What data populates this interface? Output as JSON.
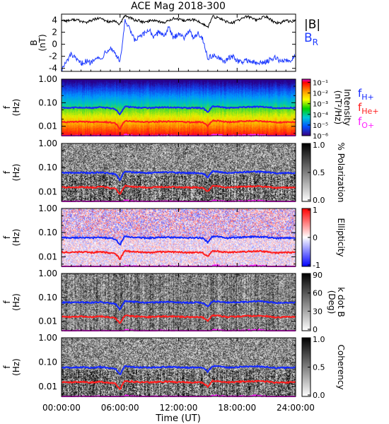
{
  "title": "ACE Mag 2018-300",
  "xlabel": "Time (UT)",
  "x_ticks": [
    "00:00:00",
    "06:00:00",
    "12:00:00",
    "18:00:00",
    "24:00:00"
  ],
  "x_range_hours": [
    0,
    24
  ],
  "colors": {
    "B_total": "#000000",
    "B_R": "#1f3cff",
    "f_H": "#1428ff",
    "f_He": "#ff1e1e",
    "f_O": "#ff20ff"
  },
  "legend_b": {
    "total": "|B|",
    "radial": "B",
    "radial_sub": "R"
  },
  "legend_f": [
    {
      "base": "f",
      "sub": "H+",
      "color": "#1428ff"
    },
    {
      "base": "f",
      "sub": "He+",
      "color": "#ff1e1e"
    },
    {
      "base": "f",
      "sub": "O+",
      "color": "#ff20ff"
    }
  ],
  "chart_data": [
    {
      "type": "line",
      "ylabel": "B (nT)",
      "ylabel_lines": [
        "B",
        "(nT)"
      ],
      "y_ticks": [
        "4",
        "2",
        "0",
        "-2",
        "-4"
      ],
      "ylim": [
        -4.5,
        5
      ],
      "x_hours": [
        0,
        0.5,
        1,
        1.5,
        2,
        2.5,
        3,
        3.5,
        4,
        4.5,
        5,
        5.5,
        6,
        6.5,
        7,
        7.5,
        8,
        8.5,
        9,
        9.5,
        10,
        10.5,
        11,
        11.5,
        12,
        12.5,
        13,
        13.5,
        14,
        14.5,
        15,
        15.5,
        16,
        16.5,
        17,
        17.5,
        18,
        18.5,
        19,
        19.5,
        20,
        20.5,
        21,
        21.5,
        22,
        22.5,
        23,
        23.5,
        24
      ],
      "series": [
        {
          "name": "|B|",
          "values": [
            4.0,
            3.9,
            4.0,
            4.1,
            3.8,
            3.6,
            3.9,
            4.2,
            4.3,
            3.9,
            3.7,
            3.8,
            3.3,
            4.8,
            4.4,
            4.0,
            3.9,
            3.6,
            3.9,
            4.0,
            3.8,
            3.5,
            4.0,
            4.3,
            4.1,
            3.9,
            4.0,
            4.1,
            3.8,
            3.4,
            2.8,
            4.6,
            4.4,
            4.1,
            3.7,
            3.5,
            3.9,
            4.3,
            4.6,
            4.4,
            4.0,
            4.4,
            4.6,
            4.0,
            3.5,
            3.6,
            3.9,
            3.8,
            4.0
          ]
        },
        {
          "name": "B_R",
          "values": [
            -4.2,
            -3.0,
            -1.6,
            -2.6,
            -3.2,
            -2.8,
            -3.1,
            -2.0,
            -2.6,
            -1.2,
            -0.6,
            -1.4,
            -3.0,
            3.8,
            2.4,
            0.6,
            1.2,
            1.7,
            2.5,
            1.0,
            2.2,
            1.4,
            2.7,
            0.9,
            2.0,
            1.0,
            2.3,
            1.2,
            1.9,
            0.8,
            -2.4,
            -1.8,
            -2.2,
            -2.9,
            -2.5,
            -2.0,
            -2.7,
            -3.0,
            -2.6,
            -2.9,
            -3.2,
            -3.1,
            -2.8,
            -2.6,
            -2.2,
            -2.9,
            -2.6,
            -2.7,
            -1.8
          ]
        }
      ]
    },
    {
      "type": "heatmap",
      "ylabel": "f (Hz)",
      "ylabel_lines": [
        "f",
        "(Hz)"
      ],
      "y_scale": "log",
      "ylim": [
        0.004,
        1.0
      ],
      "y_ticks": [
        "1.00",
        "0.10",
        "0.01"
      ],
      "colorbar": {
        "label_lines": [
          "Intensity",
          "(nT²/Hz)"
        ],
        "scale": "log",
        "range": [
          1e-06,
          0.2
        ],
        "ticks": [
          "10⁻¹",
          "10⁻²",
          "10⁻³",
          "10⁻⁴",
          "10⁻⁵",
          "10⁻⁶"
        ]
      }
    },
    {
      "type": "heatmap",
      "ylabel": "f (Hz)",
      "ylabel_lines": [
        "f",
        "(Hz)"
      ],
      "y_scale": "log",
      "ylim": [
        0.004,
        1.0
      ],
      "y_ticks": [
        "1.00",
        "0.10",
        "0.01"
      ],
      "colorbar": {
        "label_lines": [
          "% Polarization"
        ],
        "range": [
          0,
          1.0
        ],
        "ticks": [
          "1.0",
          "0.5",
          "0.0"
        ]
      }
    },
    {
      "type": "heatmap",
      "ylabel": "f (Hz)",
      "ylabel_lines": [
        "f",
        "(Hz)"
      ],
      "y_scale": "log",
      "ylim": [
        0.004,
        1.0
      ],
      "y_ticks": [
        "1.00",
        "0.10",
        "0.01"
      ],
      "colorbar": {
        "label_lines": [
          "Ellipticity"
        ],
        "range": [
          -1,
          1
        ],
        "ticks": [
          "1",
          "0",
          "-1"
        ]
      }
    },
    {
      "type": "heatmap",
      "ylabel": "f (Hz)",
      "ylabel_lines": [
        "f",
        "(Hz)"
      ],
      "y_scale": "log",
      "ylim": [
        0.004,
        1.0
      ],
      "y_ticks": [
        "1.00",
        "0.10",
        "0.01"
      ],
      "colorbar": {
        "label_lines": [
          "k dot B",
          "(Deg)"
        ],
        "range": [
          0,
          90
        ],
        "ticks": [
          "90",
          "60",
          "30",
          "0"
        ]
      }
    },
    {
      "type": "heatmap",
      "ylabel": "f (Hz)",
      "ylabel_lines": [
        "f",
        "(Hz)"
      ],
      "y_scale": "log",
      "ylim": [
        0.004,
        1.0
      ],
      "y_ticks": [
        "1.00",
        "0.10",
        "0.01"
      ],
      "colorbar": {
        "label_lines": [
          "Coherency"
        ],
        "range": [
          0,
          1.0
        ],
        "ticks": [
          "1.0",
          "0.5",
          "0.0"
        ]
      }
    }
  ],
  "gyrofrequencies_hz": {
    "x_hours": [
      0,
      1,
      2,
      3,
      4,
      5,
      5.5,
      6,
      6.5,
      7,
      8,
      9,
      10,
      11,
      12,
      13,
      14,
      14.5,
      15,
      15.5,
      16,
      17,
      18,
      19,
      20,
      21,
      22,
      23,
      24
    ],
    "f_H+": [
      0.062,
      0.061,
      0.063,
      0.06,
      0.064,
      0.058,
      0.055,
      0.03,
      0.07,
      0.066,
      0.062,
      0.06,
      0.063,
      0.064,
      0.062,
      0.06,
      0.061,
      0.058,
      0.04,
      0.07,
      0.068,
      0.06,
      0.063,
      0.066,
      0.068,
      0.065,
      0.058,
      0.06,
      0.061
    ],
    "f_He+": [
      0.0155,
      0.0152,
      0.0158,
      0.015,
      0.016,
      0.0145,
      0.0138,
      0.0075,
      0.0175,
      0.0165,
      0.0155,
      0.015,
      0.0158,
      0.016,
      0.0155,
      0.015,
      0.0152,
      0.0145,
      0.01,
      0.0175,
      0.017,
      0.015,
      0.0158,
      0.0165,
      0.017,
      0.0162,
      0.0145,
      0.015,
      0.0152
    ],
    "f_O+": [
      0.0039,
      0.0038,
      0.004,
      0.0038,
      0.004,
      0.0036,
      0.0035,
      0.0019,
      0.0044,
      0.0041,
      0.0039,
      0.0038,
      0.004,
      0.004,
      0.0039,
      0.0038,
      0.0038,
      0.0036,
      0.0025,
      0.0044,
      0.0043,
      0.0038,
      0.004,
      0.0041,
      0.0043,
      0.004,
      0.0036,
      0.0038,
      0.0038
    ]
  }
}
